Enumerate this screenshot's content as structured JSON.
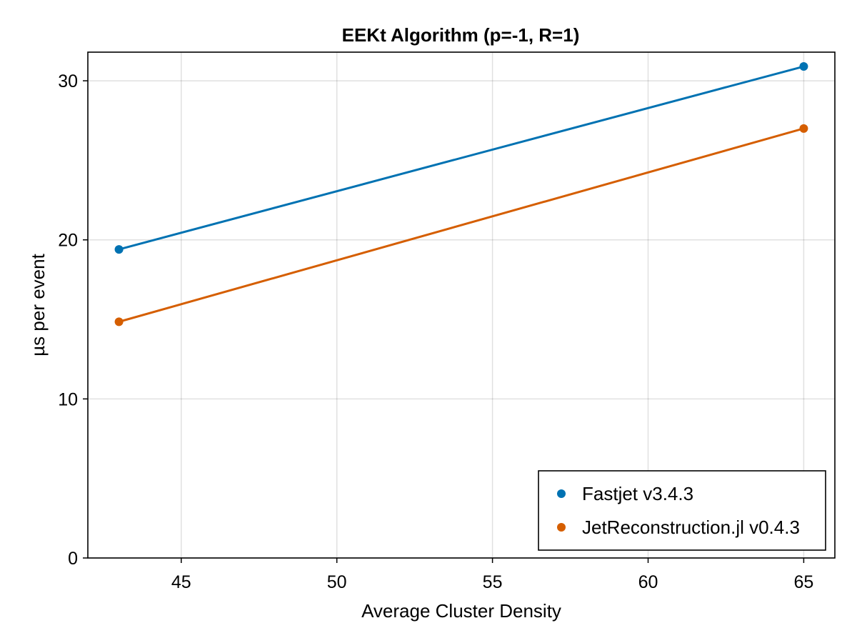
{
  "chart_data": {
    "type": "line",
    "title": "EEKt Algorithm (p=-1, R=1)",
    "xlabel": "Average Cluster Density",
    "ylabel": "µs per event",
    "x": [
      43,
      65
    ],
    "xlim": [
      42,
      66
    ],
    "ylim": [
      0,
      31.8
    ],
    "xticks": [
      45,
      50,
      55,
      60,
      65
    ],
    "yticks": [
      0,
      10,
      20,
      30
    ],
    "grid": true,
    "legend_position": "bottom-right",
    "series": [
      {
        "name": "Fastjet v3.4.3",
        "color": "#0072B2",
        "values": [
          19.4,
          30.9
        ]
      },
      {
        "name": "JetReconstruction.jl v0.4.3",
        "color": "#D55E00",
        "values": [
          14.85,
          27.0
        ]
      }
    ]
  }
}
